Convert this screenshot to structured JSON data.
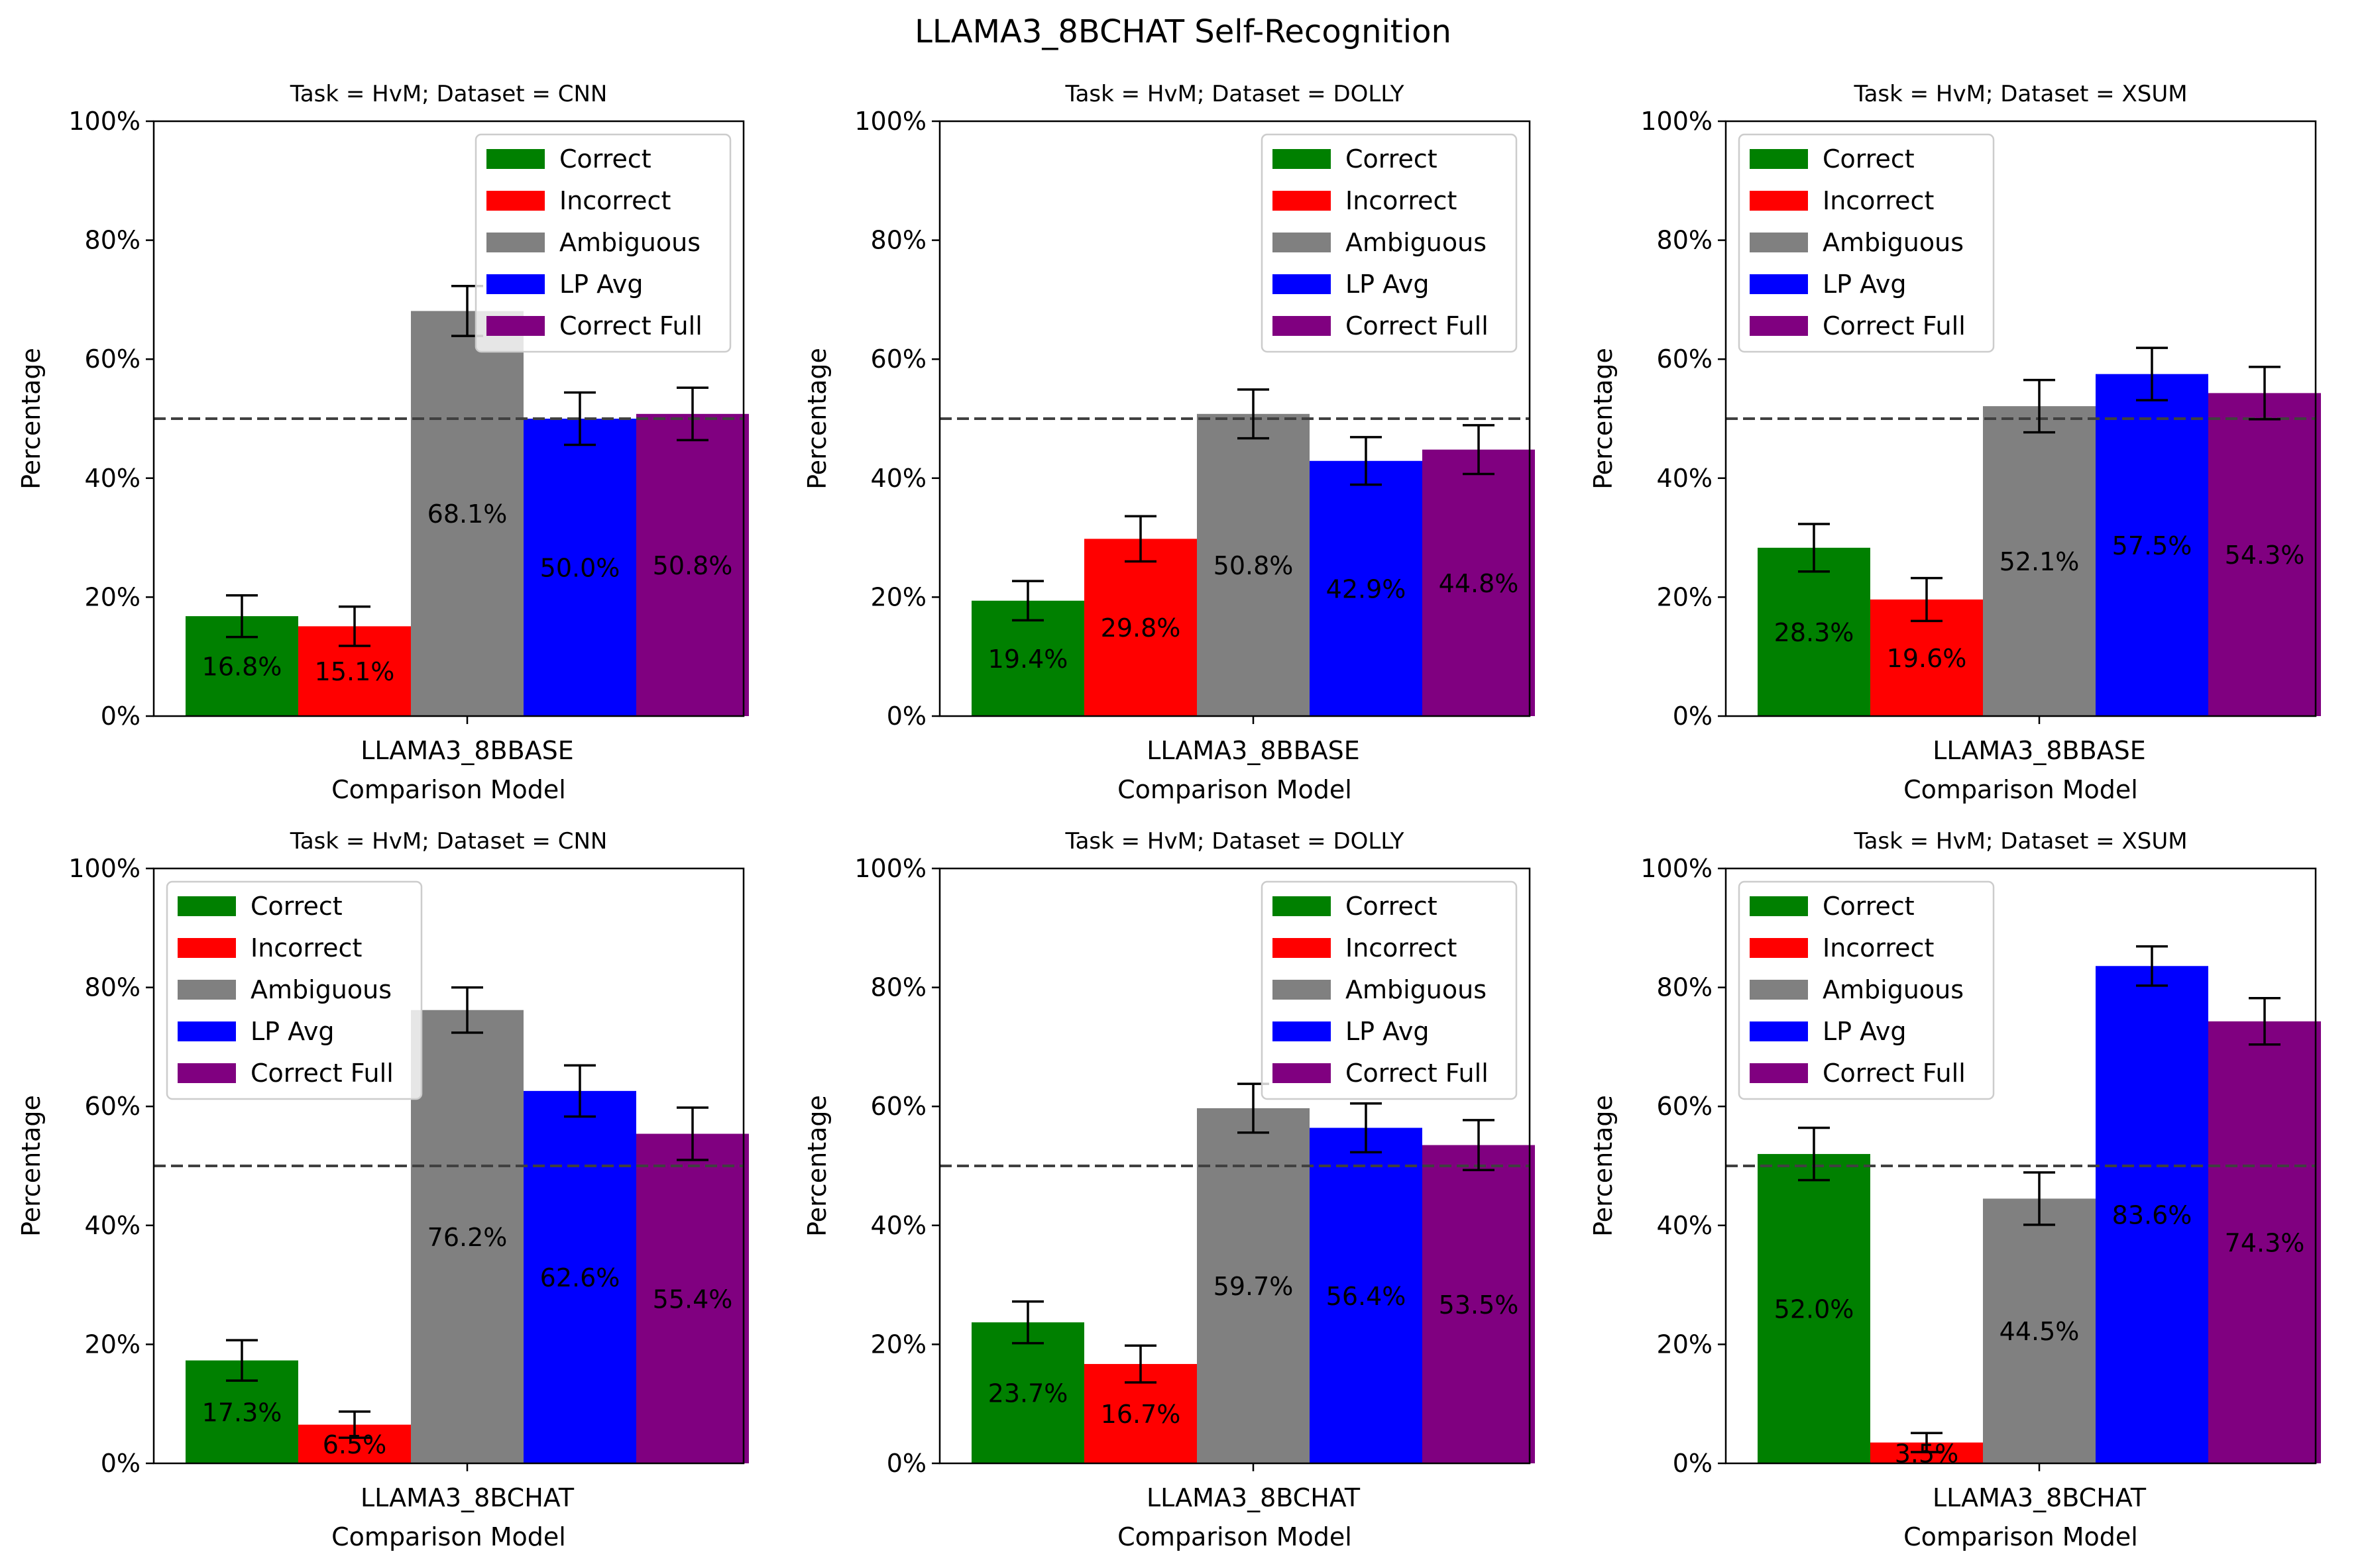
{
  "figure": {
    "title": "LLAMA3_8BCHAT Self-Recognition"
  },
  "legend_labels": [
    "Correct",
    "Incorrect",
    "Ambiguous",
    "LP Avg",
    "Correct Full"
  ],
  "series_colors": {
    "Correct": "#008000",
    "Incorrect": "#ff0000",
    "Ambiguous": "#808080",
    "LP Avg": "#0000ff",
    "Correct Full": "#800080"
  },
  "reference_line": {
    "value": 50,
    "style": "dashed",
    "color": "#404040"
  },
  "chart_data": [
    {
      "type": "bar",
      "title": "Task = HvM;  Dataset = CNN",
      "categories": [
        "LLAMA3_8BBASE"
      ],
      "xlabel": "Comparison Model",
      "ylabel": "Percentage",
      "ylim": [
        0,
        100
      ],
      "yticks": [
        "0%",
        "20%",
        "40%",
        "60%",
        "80%",
        "100%"
      ],
      "legend_position": "upper right",
      "series": [
        {
          "name": "Correct",
          "values": [
            16.8
          ],
          "error": [
            3.5
          ],
          "label": "16.8%"
        },
        {
          "name": "Incorrect",
          "values": [
            15.1
          ],
          "error": [
            3.3
          ],
          "label": "15.1%"
        },
        {
          "name": "Ambiguous",
          "values": [
            68.1
          ],
          "error": [
            4.2
          ],
          "label": "68.1%"
        },
        {
          "name": "LP Avg",
          "values": [
            50.0
          ],
          "error": [
            4.4
          ],
          "label": "50.0%"
        },
        {
          "name": "Correct Full",
          "values": [
            50.8
          ],
          "error": [
            4.4
          ],
          "label": "50.8%"
        }
      ]
    },
    {
      "type": "bar",
      "title": "Task = HvM;  Dataset = DOLLY",
      "categories": [
        "LLAMA3_8BBASE"
      ],
      "xlabel": "Comparison Model",
      "ylabel": "Percentage",
      "ylim": [
        0,
        100
      ],
      "yticks": [
        "0%",
        "20%",
        "40%",
        "60%",
        "80%",
        "100%"
      ],
      "legend_position": "upper right",
      "series": [
        {
          "name": "Correct",
          "values": [
            19.4
          ],
          "error": [
            3.3
          ],
          "label": "19.4%"
        },
        {
          "name": "Incorrect",
          "values": [
            29.8
          ],
          "error": [
            3.8
          ],
          "label": "29.8%"
        },
        {
          "name": "Ambiguous",
          "values": [
            50.8
          ],
          "error": [
            4.1
          ],
          "label": "50.8%"
        },
        {
          "name": "LP Avg",
          "values": [
            42.9
          ],
          "error": [
            4.0
          ],
          "label": "42.9%"
        },
        {
          "name": "Correct Full",
          "values": [
            44.8
          ],
          "error": [
            4.1
          ],
          "label": "44.8%"
        }
      ]
    },
    {
      "type": "bar",
      "title": "Task = HvM;  Dataset = XSUM",
      "categories": [
        "LLAMA3_8BBASE"
      ],
      "xlabel": "Comparison Model",
      "ylabel": "Percentage",
      "ylim": [
        0,
        100
      ],
      "yticks": [
        "0%",
        "20%",
        "40%",
        "60%",
        "80%",
        "100%"
      ],
      "legend_position": "upper left",
      "series": [
        {
          "name": "Correct",
          "values": [
            28.3
          ],
          "error": [
            4.0
          ],
          "label": "28.3%"
        },
        {
          "name": "Incorrect",
          "values": [
            19.6
          ],
          "error": [
            3.6
          ],
          "label": "19.6%"
        },
        {
          "name": "Ambiguous",
          "values": [
            52.1
          ],
          "error": [
            4.4
          ],
          "label": "52.1%"
        },
        {
          "name": "LP Avg",
          "values": [
            57.5
          ],
          "error": [
            4.4
          ],
          "label": "57.5%"
        },
        {
          "name": "Correct Full",
          "values": [
            54.3
          ],
          "error": [
            4.4
          ],
          "label": "54.3%"
        }
      ]
    },
    {
      "type": "bar",
      "title": "Task = HvM;  Dataset = CNN",
      "categories": [
        "LLAMA3_8BCHAT"
      ],
      "xlabel": "Comparison Model",
      "ylabel": "Percentage",
      "ylim": [
        0,
        100
      ],
      "yticks": [
        "0%",
        "20%",
        "40%",
        "60%",
        "80%",
        "100%"
      ],
      "legend_position": "upper left",
      "series": [
        {
          "name": "Correct",
          "values": [
            17.3
          ],
          "error": [
            3.4
          ],
          "label": "17.3%"
        },
        {
          "name": "Incorrect",
          "values": [
            6.5
          ],
          "error": [
            2.2
          ],
          "label": "6.5%"
        },
        {
          "name": "Ambiguous",
          "values": [
            76.2
          ],
          "error": [
            3.8
          ],
          "label": "76.2%"
        },
        {
          "name": "LP Avg",
          "values": [
            62.6
          ],
          "error": [
            4.3
          ],
          "label": "62.6%"
        },
        {
          "name": "Correct Full",
          "values": [
            55.4
          ],
          "error": [
            4.4
          ],
          "label": "55.4%"
        }
      ]
    },
    {
      "type": "bar",
      "title": "Task = HvM;  Dataset = DOLLY",
      "categories": [
        "LLAMA3_8BCHAT"
      ],
      "xlabel": "Comparison Model",
      "ylabel": "Percentage",
      "ylim": [
        0,
        100
      ],
      "yticks": [
        "0%",
        "20%",
        "40%",
        "60%",
        "80%",
        "100%"
      ],
      "legend_position": "upper right",
      "series": [
        {
          "name": "Correct",
          "values": [
            23.7
          ],
          "error": [
            3.5
          ],
          "label": "23.7%"
        },
        {
          "name": "Incorrect",
          "values": [
            16.7
          ],
          "error": [
            3.1
          ],
          "label": "16.7%"
        },
        {
          "name": "Ambiguous",
          "values": [
            59.7
          ],
          "error": [
            4.1
          ],
          "label": "59.7%"
        },
        {
          "name": "LP Avg",
          "values": [
            56.4
          ],
          "error": [
            4.1
          ],
          "label": "56.4%"
        },
        {
          "name": "Correct Full",
          "values": [
            53.5
          ],
          "error": [
            4.2
          ],
          "label": "53.5%"
        }
      ]
    },
    {
      "type": "bar",
      "title": "Task = HvM;  Dataset = XSUM",
      "categories": [
        "LLAMA3_8BCHAT"
      ],
      "xlabel": "Comparison Model",
      "ylabel": "Percentage",
      "ylim": [
        0,
        100
      ],
      "yticks": [
        "0%",
        "20%",
        "40%",
        "60%",
        "80%",
        "100%"
      ],
      "legend_position": "upper left",
      "series": [
        {
          "name": "Correct",
          "values": [
            52.0
          ],
          "error": [
            4.4
          ],
          "label": "52.0%"
        },
        {
          "name": "Incorrect",
          "values": [
            3.5
          ],
          "error": [
            1.6
          ],
          "label": "3.5%"
        },
        {
          "name": "Ambiguous",
          "values": [
            44.5
          ],
          "error": [
            4.4
          ],
          "label": "44.5%"
        },
        {
          "name": "LP Avg",
          "values": [
            83.6
          ],
          "error": [
            3.3
          ],
          "label": "83.6%"
        },
        {
          "name": "Correct Full",
          "values": [
            74.3
          ],
          "error": [
            3.9
          ],
          "label": "74.3%"
        }
      ]
    }
  ]
}
